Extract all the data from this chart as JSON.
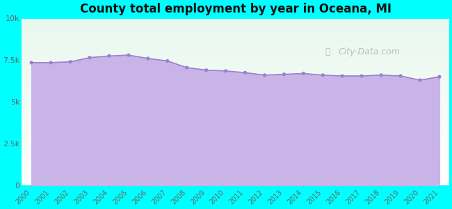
{
  "title": "County total employment by year in Oceana, MI",
  "years": [
    2000,
    2001,
    2002,
    2003,
    2004,
    2005,
    2006,
    2007,
    2008,
    2009,
    2010,
    2011,
    2012,
    2013,
    2014,
    2015,
    2016,
    2017,
    2018,
    2019,
    2020,
    2021
  ],
  "values": [
    7350,
    7350,
    7400,
    7650,
    7750,
    7800,
    7600,
    7450,
    7050,
    6900,
    6850,
    6750,
    6600,
    6650,
    6700,
    6600,
    6550,
    6550,
    6600,
    6550,
    6300,
    6500
  ],
  "ylim": [
    0,
    10000
  ],
  "yticks": [
    0,
    2500,
    5000,
    7500,
    10000
  ],
  "ytick_labels": [
    "0",
    "2.5k",
    "5k",
    "7.5k",
    "10k"
  ],
  "background_color": "#00FFFF",
  "fill_color": "#C9B4E8",
  "line_color": "#9B80CC",
  "dot_color": "#9B80CC",
  "title_color": "#111111",
  "axis_color": "#666666",
  "watermark": "City-Data.com",
  "plot_bg_color_top": "#e8f5ee",
  "plot_bg_color_bottom": "#f0f8f0"
}
